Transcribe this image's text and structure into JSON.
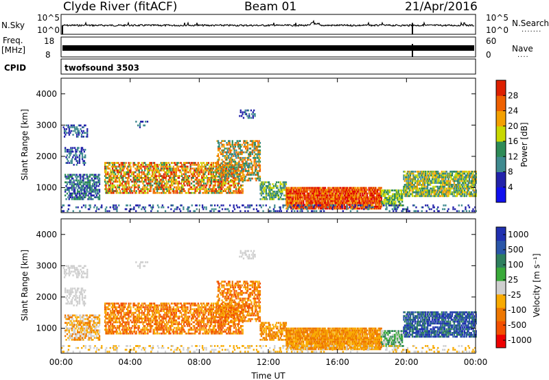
{
  "header": {
    "station": "Clyde River (fitACF)",
    "beam": "Beam 01",
    "date": "21/Apr/2016"
  },
  "nsky": {
    "label": "N.Sky",
    "tick_top": "10^5",
    "tick_bottom": "10^0",
    "right_label": "N.Search",
    "right_tick_top": "10^5",
    "right_tick_bottom": "10^0"
  },
  "freq": {
    "label_line1": "Freq.",
    "label_line2": "[MHz]",
    "tick_top": "18",
    "tick_bottom": "8",
    "right_label": "Nave",
    "right_tick_top": "60",
    "right_tick_bottom": "0"
  },
  "cpid": {
    "label": "CPID",
    "value": "twofsound 3503"
  },
  "colors": {
    "power": [
      "#1010ee",
      "#2222aa",
      "#3f8a8f",
      "#2e8b57",
      "#c8d800",
      "#f3a000",
      "#ee6000",
      "#dd2000",
      "#e00000"
    ],
    "velocity": [
      "#ee0000",
      "#f35000",
      "#ee7700",
      "#f8aa00",
      "#cfcfcf",
      "#3aaa3a",
      "#2e7f5e",
      "#2a56a8",
      "#2030b0"
    ]
  },
  "chart_data": [
    {
      "type": "heatmap",
      "panel": "power",
      "title": "",
      "xlabel": "",
      "ylabel": "Slant Range [km]",
      "x_ticks": [
        "00:00",
        "04:00",
        "08:00",
        "12:00",
        "16:00",
        "20:00",
        "00:00"
      ],
      "y_ticks": [
        "1000",
        "2000",
        "3000",
        "4000"
      ],
      "ylim": [
        200,
        4500
      ],
      "x_range_hours": [
        0,
        24
      ],
      "colorbar_label": "Power [dB]",
      "colorbar_ticks": [
        "4",
        "8",
        "12",
        "16",
        "20",
        "24",
        "28"
      ],
      "colorbar_range": [
        0,
        30
      ]
    },
    {
      "type": "heatmap",
      "panel": "velocity",
      "title": "",
      "xlabel": "Time UT",
      "ylabel": "Slant Range [km]",
      "x_ticks": [
        "00:00",
        "04:00",
        "08:00",
        "12:00",
        "16:00",
        "20:00",
        "00:00"
      ],
      "y_ticks": [
        "1000",
        "2000",
        "3000",
        "4000"
      ],
      "ylim": [
        200,
        4500
      ],
      "x_range_hours": [
        0,
        24
      ],
      "colorbar_label": "Velocity [m s⁻¹]",
      "colorbar_ticks": [
        "-1000",
        "-500",
        "-100",
        "-25",
        "25",
        "100",
        "500",
        "1000"
      ],
      "colorbar_range": [
        -1000,
        1000
      ]
    }
  ]
}
